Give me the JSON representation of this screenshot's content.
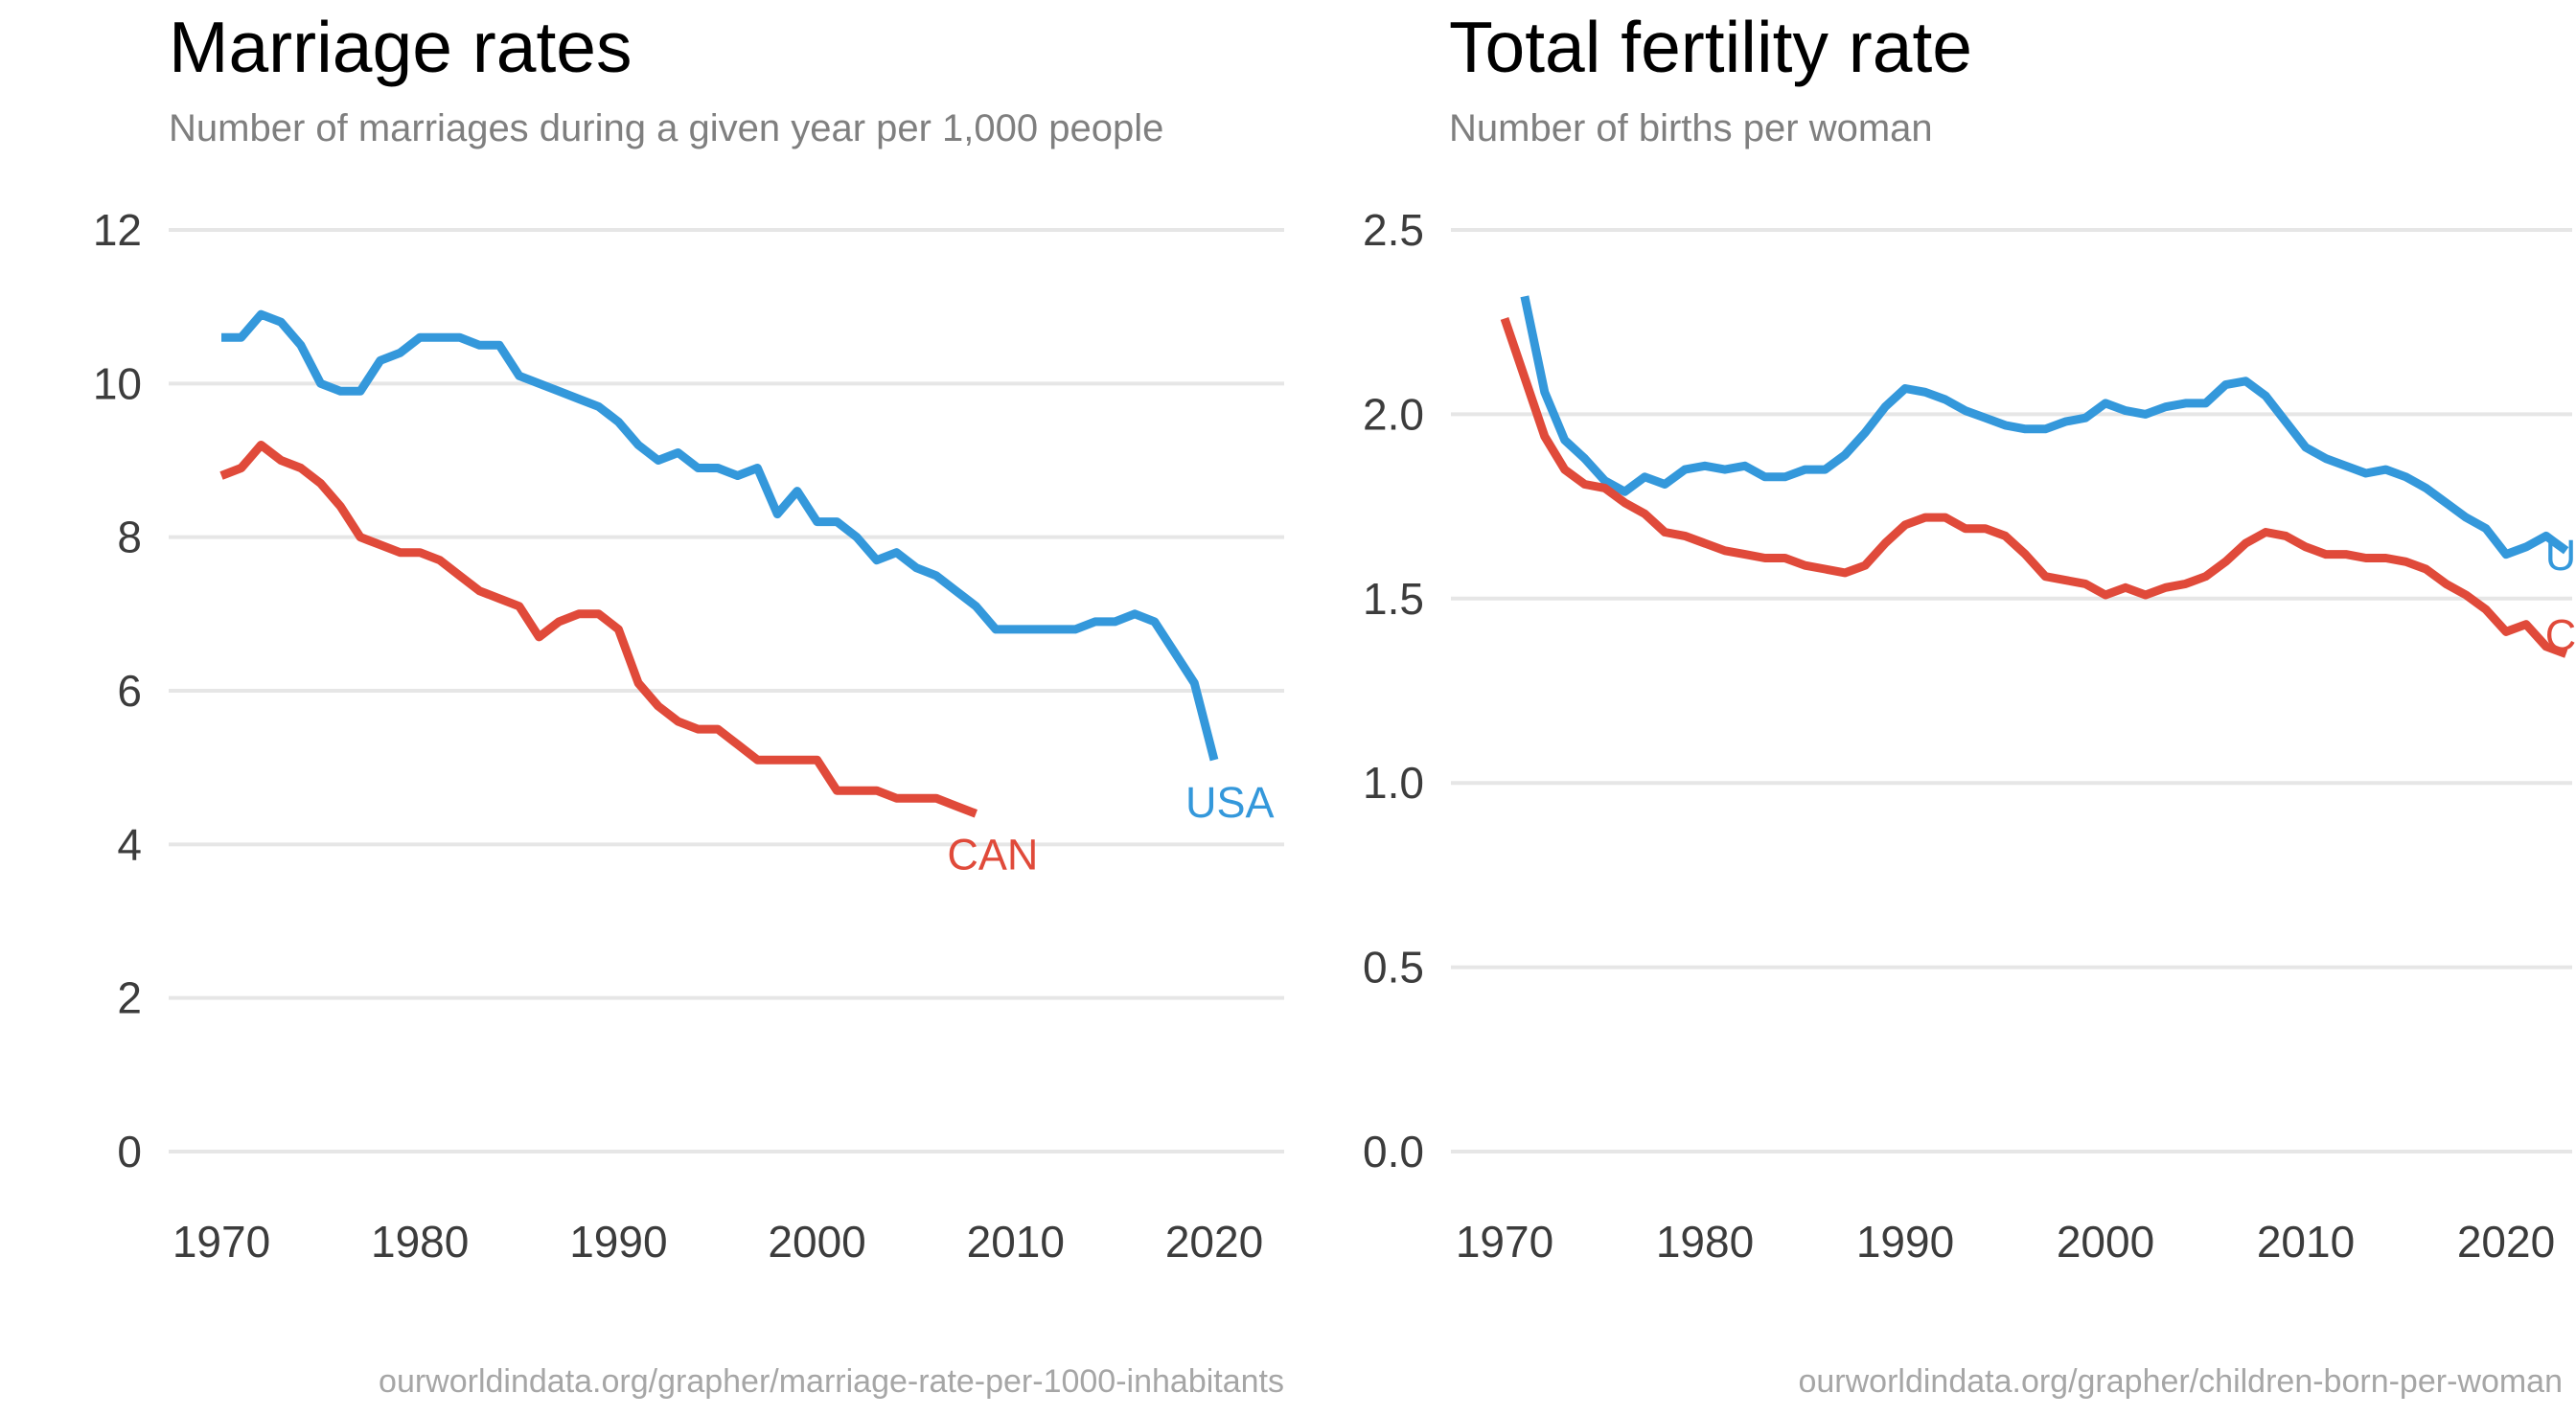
{
  "chart_data": [
    {
      "type": "line",
      "title": "Marriage rates",
      "subtitle": "Number of marriages during a given year per 1,000 people",
      "source": "ourworldindata.org/grapher/marriage-rate-per-1000-inhabitants",
      "xlim": [
        1970,
        2023
      ],
      "ylim": [
        0,
        12
      ],
      "x_ticks": [
        1970,
        1980,
        1990,
        2000,
        2010,
        2020
      ],
      "y_ticks": [
        0,
        2,
        4,
        6,
        8,
        10,
        12
      ],
      "y_tick_labels": [
        "0",
        "2",
        "4",
        "6",
        "8",
        "10",
        "12"
      ],
      "grid": true,
      "legend": "direct labels at line ends",
      "series": [
        {
          "name": "USA",
          "color": "#3498db",
          "x": [
            1970,
            1971,
            1972,
            1973,
            1974,
            1975,
            1976,
            1977,
            1978,
            1979,
            1980,
            1981,
            1982,
            1983,
            1984,
            1985,
            1986,
            1987,
            1988,
            1989,
            1990,
            1991,
            1992,
            1993,
            1994,
            1995,
            1996,
            1997,
            1998,
            1999,
            2000,
            2001,
            2002,
            2003,
            2004,
            2005,
            2006,
            2007,
            2008,
            2009,
            2010,
            2011,
            2012,
            2013,
            2014,
            2015,
            2016,
            2017,
            2018,
            2019,
            2020
          ],
          "y": [
            10.6,
            10.6,
            10.9,
            10.8,
            10.5,
            10.0,
            9.9,
            9.9,
            10.3,
            10.4,
            10.6,
            10.6,
            10.6,
            10.5,
            10.5,
            10.1,
            10.0,
            9.9,
            9.8,
            9.7,
            9.5,
            9.2,
            9.0,
            9.1,
            8.9,
            8.9,
            8.8,
            8.9,
            8.3,
            8.6,
            8.2,
            8.2,
            8.0,
            7.7,
            7.8,
            7.6,
            7.5,
            7.3,
            7.1,
            6.8,
            6.8,
            6.8,
            6.8,
            6.8,
            6.9,
            6.9,
            7.0,
            6.9,
            6.5,
            6.1,
            5.1
          ]
        },
        {
          "name": "CAN",
          "color": "#e04a3a",
          "x": [
            1970,
            1971,
            1972,
            1973,
            1974,
            1975,
            1976,
            1977,
            1978,
            1979,
            1980,
            1981,
            1982,
            1983,
            1984,
            1985,
            1986,
            1987,
            1988,
            1989,
            1990,
            1991,
            1992,
            1993,
            1994,
            1995,
            1996,
            1997,
            1998,
            1999,
            2000,
            2001,
            2002,
            2003,
            2004,
            2005,
            2006,
            2007,
            2008
          ],
          "y": [
            8.8,
            8.9,
            9.2,
            9.0,
            8.9,
            8.7,
            8.4,
            8.0,
            7.9,
            7.8,
            7.8,
            7.7,
            7.5,
            7.3,
            7.2,
            7.1,
            6.7,
            6.9,
            7.0,
            7.0,
            6.8,
            6.1,
            5.8,
            5.6,
            5.5,
            5.5,
            5.3,
            5.1,
            5.1,
            5.1,
            5.1,
            4.7,
            4.7,
            4.7,
            4.6,
            4.6,
            4.6,
            4.5,
            4.4
          ]
        }
      ]
    },
    {
      "type": "line",
      "title": "Total fertility rate",
      "subtitle": "Number of births per woman",
      "source": "ourworldindata.org/grapher/children-born-per-woman",
      "xlim": [
        1970,
        2023
      ],
      "ylim": [
        0,
        2.5
      ],
      "x_ticks": [
        1970,
        1980,
        1990,
        2000,
        2010,
        2020
      ],
      "y_ticks": [
        0,
        0.5,
        1.0,
        1.5,
        2.0,
        2.5
      ],
      "y_tick_labels": [
        "0.0",
        "0.5",
        "1.0",
        "1.5",
        "2.0",
        "2.5"
      ],
      "grid": true,
      "legend": "direct labels at line ends",
      "series": [
        {
          "name": "USA",
          "color": "#3498db",
          "x": [
            1971,
            1972,
            1973,
            1974,
            1975,
            1976,
            1977,
            1978,
            1979,
            1980,
            1981,
            1982,
            1983,
            1984,
            1985,
            1986,
            1987,
            1988,
            1989,
            1990,
            1991,
            1992,
            1993,
            1994,
            1995,
            1996,
            1997,
            1998,
            1999,
            2000,
            2001,
            2002,
            2003,
            2004,
            2005,
            2006,
            2007,
            2008,
            2009,
            2010,
            2011,
            2012,
            2013,
            2014,
            2015,
            2016,
            2017,
            2018,
            2019,
            2020,
            2021,
            2022,
            2023
          ],
          "y": [
            2.32,
            2.06,
            1.93,
            1.88,
            1.82,
            1.79,
            1.83,
            1.81,
            1.85,
            1.86,
            1.85,
            1.86,
            1.83,
            1.83,
            1.85,
            1.85,
            1.89,
            1.95,
            2.02,
            2.07,
            2.06,
            2.04,
            2.01,
            1.99,
            1.97,
            1.96,
            1.96,
            1.98,
            1.99,
            2.03,
            2.01,
            2.0,
            2.02,
            2.03,
            2.03,
            2.08,
            2.09,
            2.05,
            1.98,
            1.91,
            1.88,
            1.86,
            1.84,
            1.85,
            1.83,
            1.8,
            1.76,
            1.72,
            1.69,
            1.62,
            1.64,
            1.67,
            1.63
          ]
        },
        {
          "name": "CAN",
          "color": "#e04a3a",
          "x": [
            1970,
            1971,
            1972,
            1973,
            1974,
            1975,
            1976,
            1977,
            1978,
            1979,
            1980,
            1981,
            1982,
            1983,
            1984,
            1985,
            1986,
            1987,
            1988,
            1989,
            1990,
            1991,
            1992,
            1993,
            1994,
            1995,
            1996,
            1997,
            1998,
            1999,
            2000,
            2001,
            2002,
            2003,
            2004,
            2005,
            2006,
            2007,
            2008,
            2009,
            2010,
            2011,
            2012,
            2013,
            2014,
            2015,
            2016,
            2017,
            2018,
            2019,
            2020,
            2021,
            2022,
            2023
          ],
          "y": [
            2.26,
            2.1,
            1.94,
            1.85,
            1.81,
            1.8,
            1.76,
            1.73,
            1.68,
            1.67,
            1.65,
            1.63,
            1.62,
            1.61,
            1.61,
            1.59,
            1.58,
            1.57,
            1.59,
            1.65,
            1.7,
            1.72,
            1.72,
            1.69,
            1.69,
            1.67,
            1.62,
            1.56,
            1.55,
            1.54,
            1.51,
            1.53,
            1.51,
            1.53,
            1.54,
            1.56,
            1.6,
            1.65,
            1.68,
            1.67,
            1.64,
            1.62,
            1.62,
            1.61,
            1.61,
            1.6,
            1.58,
            1.54,
            1.51,
            1.47,
            1.41,
            1.43,
            1.37,
            1.35
          ]
        }
      ]
    }
  ]
}
